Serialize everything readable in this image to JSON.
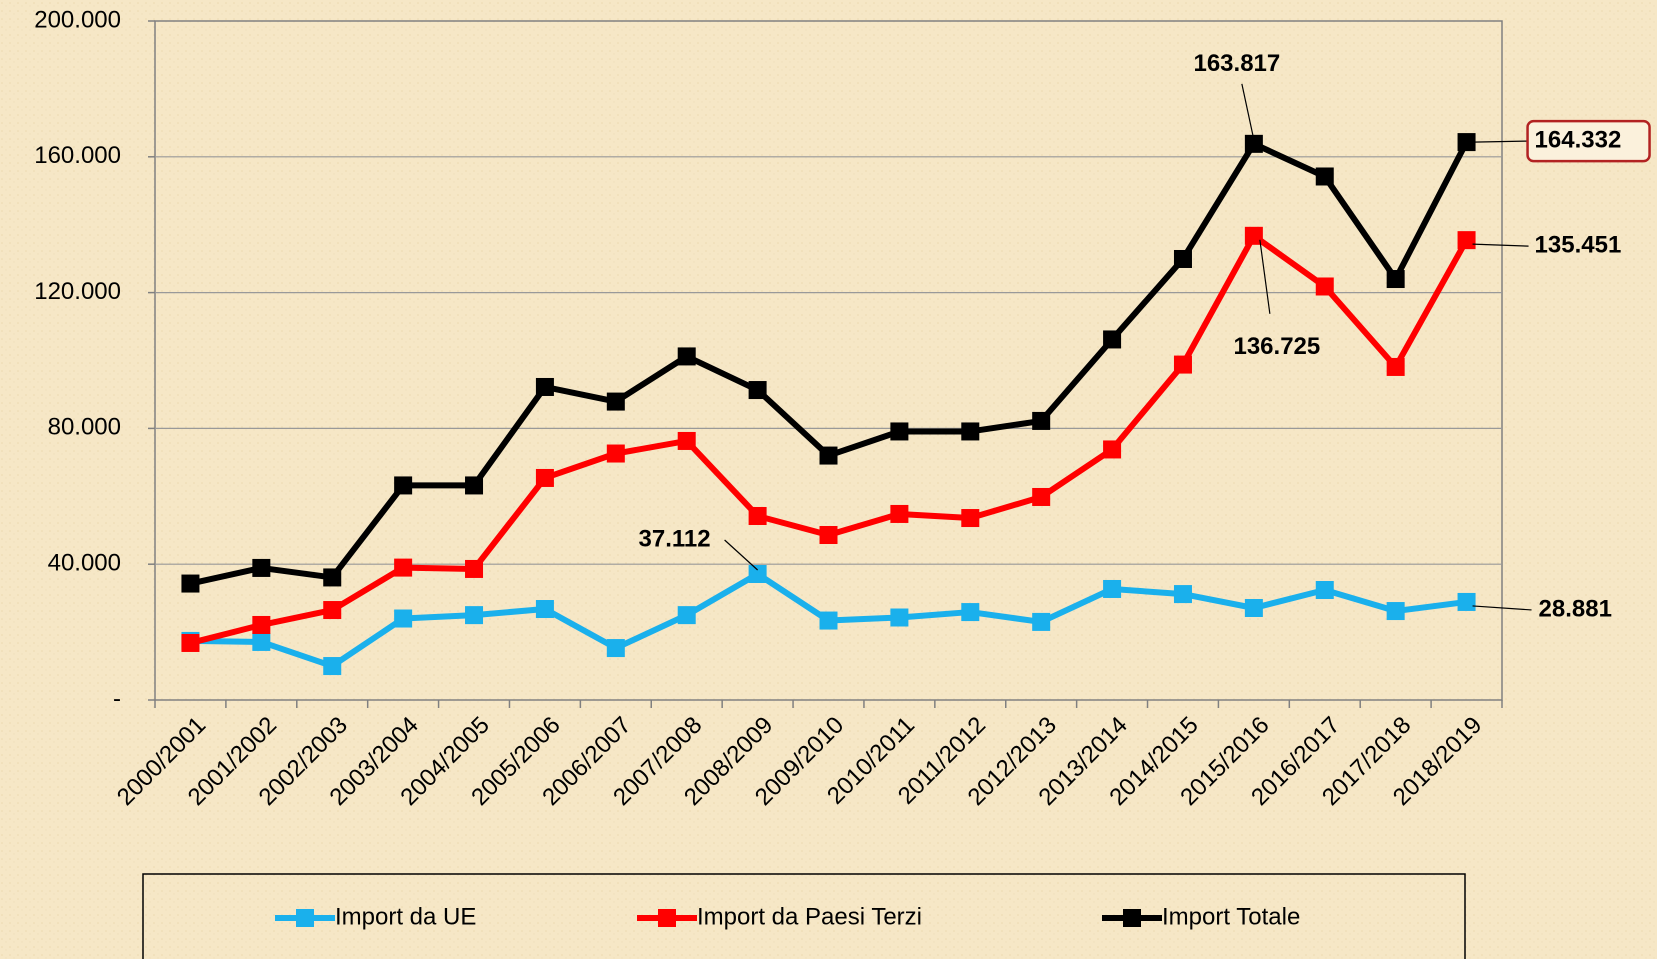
{
  "chart_data": {
    "type": "line",
    "categories": [
      "2000/2001",
      "2001/2002",
      "2002/2003",
      "2003/2004",
      "2004/2005",
      "2005/2006",
      "2006/2007",
      "2007/2008",
      "2008/2009",
      "2009/2010",
      "2010/2011",
      "2011/2012",
      "2012/2013",
      "2013/2014",
      "2014/2015",
      "2015/2016",
      "2016/2017",
      "2017/2018",
      "2018/2019"
    ],
    "series": [
      {
        "name": "Import da UE",
        "color": "#1ab0ec",
        "values": [
          17400,
          17100,
          10000,
          24000,
          25000,
          26800,
          15300,
          25000,
          37112,
          23400,
          24300,
          25900,
          23000,
          32700,
          31200,
          27100,
          32400,
          26200,
          28881
        ],
        "value_labels": [
          null,
          null,
          null,
          null,
          null,
          null,
          null,
          null,
          "37.112",
          null,
          null,
          null,
          null,
          null,
          null,
          null,
          null,
          null,
          "28.881"
        ]
      },
      {
        "name": "Import da Paesi Terzi",
        "color": "#ff0000",
        "values": [
          16800,
          22100,
          26500,
          39000,
          38600,
          65400,
          72600,
          76300,
          54200,
          48600,
          54800,
          53600,
          59800,
          73800,
          98800,
          136725,
          121800,
          98100,
          135451
        ],
        "value_labels": [
          null,
          null,
          null,
          null,
          null,
          null,
          null,
          null,
          null,
          null,
          null,
          null,
          null,
          null,
          null,
          "136.725",
          null,
          null,
          "135.451"
        ]
      },
      {
        "name": "Import Totale",
        "color": "#000000",
        "values": [
          34300,
          38900,
          36100,
          63200,
          63200,
          92200,
          87900,
          101200,
          91300,
          72000,
          79100,
          79100,
          82200,
          106200,
          129900,
          163817,
          154200,
          124000,
          164332
        ],
        "value_labels": [
          null,
          null,
          null,
          null,
          null,
          null,
          null,
          null,
          null,
          null,
          null,
          null,
          null,
          null,
          null,
          "163.817",
          null,
          null,
          "164.332"
        ]
      }
    ],
    "ylim": [
      0,
      200000
    ],
    "yticks": [
      {
        "value": 0,
        "label": "-"
      },
      {
        "value": 40000,
        "label": "40.000"
      },
      {
        "value": 80000,
        "label": "80.000"
      },
      {
        "value": 120000,
        "label": "120.000"
      },
      {
        "value": 160000,
        "label": "160.000"
      },
      {
        "value": 200000,
        "label": "200.000"
      }
    ],
    "grid": true,
    "legend": "bottom"
  }
}
